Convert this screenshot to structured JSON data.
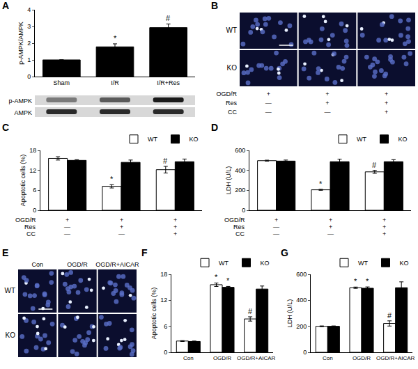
{
  "chart_data": [
    {
      "panel": "A",
      "type": "bar",
      "categories": [
        "Sham",
        "I/R",
        "I/R+Res"
      ],
      "values": [
        1,
        1.78,
        2.93
      ],
      "errors": [
        0,
        0.18,
        0.22
      ],
      "color": "#000000",
      "y_label": "p-AMPK/AMPK",
      "ylim": [
        0,
        4
      ],
      "yticks": [
        0,
        1,
        2,
        3,
        4
      ],
      "grid": false,
      "annotations": [
        {
          "text": "*",
          "category": 1
        },
        {
          "text": "#",
          "category": 2
        }
      ],
      "blot": {
        "rows": [
          "p-AMPK",
          "AMPK"
        ]
      }
    },
    {
      "panel": "C",
      "type": "bar",
      "categories": [
        null,
        null,
        null
      ],
      "series": [
        {
          "name": "WT",
          "color": "#ffffff",
          "values": [
            15.6,
            7.2,
            12.2
          ],
          "errors": [
            0.5,
            0.5,
            1.0
          ]
        },
        {
          "name": "KO",
          "color": "#000000",
          "values": [
            15.0,
            14.4,
            14.6
          ],
          "errors": [
            0.2,
            0.7,
            0.8
          ]
        }
      ],
      "y_label": "Apoptotic cells (%)",
      "ylim": [
        0,
        18
      ],
      "yticks": [
        0,
        6,
        12,
        18
      ],
      "grid": false,
      "legend": "top right",
      "tick_labels": "y",
      "conditions": [
        {
          "label": "OGD/R",
          "marks": [
            "+",
            "+",
            "+"
          ]
        },
        {
          "label": "Res",
          "marks": [
            "—",
            "+",
            "+"
          ]
        },
        {
          "label": "CC",
          "marks": [
            "—",
            "—",
            "+"
          ]
        }
      ],
      "annotations": [
        {
          "text": "*",
          "category": 1,
          "series": "WT"
        },
        {
          "text": "#",
          "category": 2,
          "series": "WT"
        }
      ]
    },
    {
      "panel": "D",
      "type": "bar",
      "categories": [
        null,
        null,
        null
      ],
      "series": [
        {
          "name": "WT",
          "color": "#ffffff",
          "values": [
            497,
            205,
            385
          ],
          "errors": [
            5,
            5,
            15
          ]
        },
        {
          "name": "KO",
          "color": "#000000",
          "values": [
            493,
            487,
            487
          ],
          "errors": [
            10,
            25,
            20
          ]
        }
      ],
      "y_label": "LDH (U/L)",
      "ylim": [
        0,
        600
      ],
      "yticks": [
        0,
        200,
        400,
        600
      ],
      "grid": false,
      "legend": "top right",
      "tick_labels": "y",
      "conditions": [
        {
          "label": "OGD/R",
          "marks": [
            "+",
            "+",
            "+"
          ]
        },
        {
          "label": "Res",
          "marks": [
            "—",
            "+",
            "+"
          ]
        },
        {
          "label": "CC",
          "marks": [
            "—",
            "—",
            "+"
          ]
        }
      ],
      "annotations": [
        {
          "text": "*",
          "category": 1,
          "series": "WT"
        },
        {
          "text": "#",
          "category": 2,
          "series": "WT"
        }
      ]
    },
    {
      "panel": "F",
      "type": "bar",
      "categories": [
        "Con",
        "OGD/R",
        "OGD/R+AICAR"
      ],
      "series": [
        {
          "name": "WT",
          "color": "#ffffff",
          "values": [
            2.6,
            15.6,
            7.7
          ],
          "errors": [
            0.1,
            0.4,
            0.5
          ]
        },
        {
          "name": "KO",
          "color": "#000000",
          "values": [
            2.5,
            15.0,
            14.6
          ],
          "errors": [
            0.1,
            0.2,
            0.7
          ]
        }
      ],
      "y_label": "Apoptotic cells (%)",
      "ylim": [
        0,
        18
      ],
      "yticks": [
        0,
        6,
        12,
        18
      ],
      "grid": false,
      "legend": "top right",
      "annotations": [
        {
          "text": "*",
          "category": 1,
          "series": "WT"
        },
        {
          "text": "*",
          "category": 1,
          "series": "KO"
        },
        {
          "text": "#",
          "category": 2,
          "series": "WT"
        }
      ]
    },
    {
      "panel": "G",
      "type": "bar",
      "categories": [
        "Con",
        "OGD/R",
        "OGD/R+AICAR"
      ],
      "series": [
        {
          "name": "WT",
          "color": "#ffffff",
          "values": [
            200,
            497,
            222
          ],
          "errors": [
            3,
            5,
            20
          ]
        },
        {
          "name": "KO",
          "color": "#000000",
          "values": [
            200,
            493,
            497
          ],
          "errors": [
            3,
            10,
            45
          ]
        }
      ],
      "y_label": "LDH (U/L)",
      "ylim": [
        0,
        600
      ],
      "yticks": [
        0,
        200,
        400,
        600
      ],
      "grid": false,
      "legend": "top right",
      "annotations": [
        {
          "text": "*",
          "category": 1,
          "series": "WT"
        },
        {
          "text": "*",
          "category": 1,
          "series": "KO"
        },
        {
          "text": "#",
          "category": 2,
          "series": "WT"
        }
      ]
    }
  ],
  "images": [
    {
      "panel": "B",
      "rows": [
        "WT",
        "KO"
      ],
      "conditions": [
        {
          "label": "OGD/R",
          "marks": [
            "+",
            "+",
            "+"
          ]
        },
        {
          "label": "Res",
          "marks": [
            "—",
            "+",
            "+"
          ]
        },
        {
          "label": "CC",
          "marks": [
            "—",
            "—",
            "+"
          ]
        }
      ]
    },
    {
      "panel": "E",
      "rows": [
        "WT",
        "KO"
      ],
      "columns": [
        "Con",
        "OGD/R",
        "OGD/R+AICAR"
      ]
    }
  ]
}
